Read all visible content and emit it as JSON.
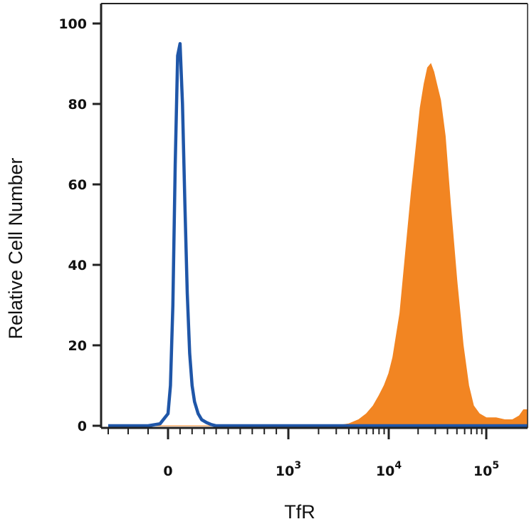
{
  "chart_data": {
    "type": "area",
    "title": "",
    "xlabel": "TfR",
    "ylabel": "Relative Cell Number",
    "x_scale": "biexponential",
    "xlim": [
      -300,
      180000
    ],
    "ylim": [
      0,
      100
    ],
    "yticks": [
      {
        "value": 0,
        "label": "0"
      },
      {
        "value": 20,
        "label": "20"
      },
      {
        "value": 40,
        "label": "40"
      },
      {
        "value": 60,
        "label": "60"
      },
      {
        "value": 80,
        "label": "80"
      },
      {
        "value": 100,
        "label": "100"
      }
    ],
    "xticks": [
      {
        "value": 0,
        "base": "0",
        "exp": ""
      },
      {
        "value": 1000,
        "base": "10",
        "exp": "3"
      },
      {
        "value": 10000,
        "base": "10",
        "exp": "4"
      },
      {
        "value": 100000,
        "base": "10",
        "exp": "5"
      }
    ],
    "grid": false,
    "legend": "none",
    "series": [
      {
        "style": "outline",
        "color": "#1f56a8",
        "x": [
          -300,
          -100,
          -40,
          0,
          20,
          40,
          60,
          80,
          100,
          120,
          140,
          160,
          180,
          200,
          220,
          250,
          280,
          320,
          360,
          400,
          180000
        ],
        "y": [
          0,
          0,
          0.5,
          3,
          10,
          30,
          65,
          92,
          95,
          80,
          55,
          33,
          18,
          10,
          6,
          3,
          1.5,
          0.8,
          0.3,
          0,
          0
        ]
      },
      {
        "style": "filled",
        "color": "#f28522",
        "x": [
          -300,
          3000,
          4000,
          5000,
          6000,
          7000,
          8000,
          9000,
          10000,
          11000,
          13000,
          15000,
          17000,
          19000,
          21000,
          23000,
          25000,
          27000,
          29000,
          31000,
          34000,
          38000,
          43000,
          50000,
          58000,
          66000,
          74000,
          85000,
          100000,
          115000,
          130000,
          145000,
          160000,
          170000,
          180000
        ],
        "y": [
          0,
          0,
          0.5,
          1.5,
          3,
          5,
          7.5,
          10,
          13,
          17,
          28,
          44,
          58,
          69,
          79,
          85,
          89,
          90,
          88,
          85,
          81,
          72,
          55,
          36,
          20,
          10,
          5,
          3,
          2,
          2,
          1.5,
          1.5,
          2.5,
          4,
          4
        ]
      }
    ]
  }
}
